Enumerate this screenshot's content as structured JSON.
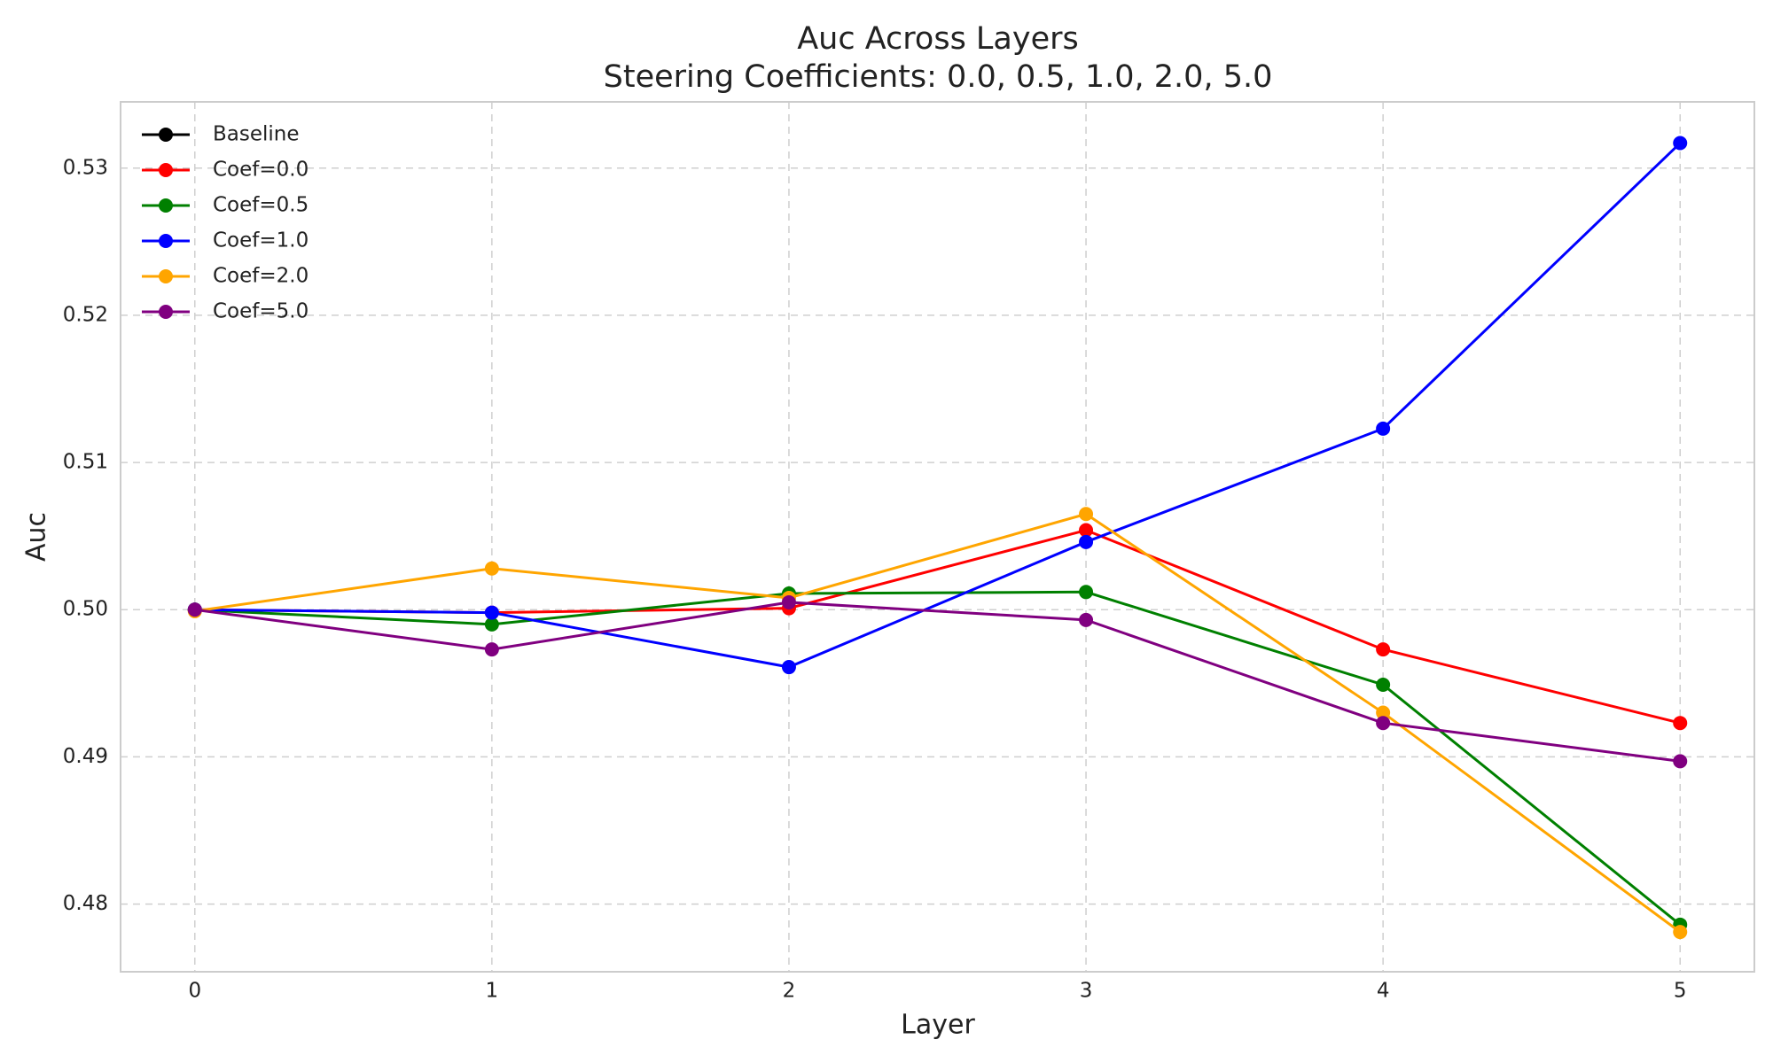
{
  "chart_data": {
    "type": "line",
    "title": "Auc Across Layers",
    "subtitle": "Steering Coefficients: 0.0, 0.5, 1.0, 2.0, 5.0",
    "x_label": "Layer",
    "y_label": "Auc",
    "x": [
      0,
      1,
      2,
      3,
      4,
      5
    ],
    "series": [
      {
        "name": "Baseline",
        "color": "#000000",
        "values": [
          0.5,
          null,
          null,
          null,
          null,
          null
        ]
      },
      {
        "name": "Coef=0.0",
        "color": "#ff0000",
        "values": [
          0.5,
          0.4998,
          0.5001,
          0.5054,
          0.4973,
          0.4923
        ]
      },
      {
        "name": "Coef=0.5",
        "color": "#008000",
        "values": [
          0.5,
          0.499,
          0.5011,
          0.5012,
          0.4949,
          0.4786
        ]
      },
      {
        "name": "Coef=1.0",
        "color": "#0000ff",
        "values": [
          0.5,
          0.4998,
          0.4961,
          0.5046,
          0.5123,
          0.5317
        ]
      },
      {
        "name": "Coef=2.0",
        "color": "#ffa500",
        "values": [
          0.4999,
          0.5028,
          0.5008,
          0.5065,
          0.493,
          0.4781
        ]
      },
      {
        "name": "Coef=5.0",
        "color": "#800080",
        "values": [
          0.5,
          0.4973,
          0.5005,
          0.4993,
          0.4923,
          0.4897
        ]
      }
    ],
    "xlim": [
      -0.25,
      5.25
    ],
    "xticks": [
      0,
      1,
      2,
      3,
      4,
      5
    ],
    "ylim": [
      0.4754,
      0.5345
    ],
    "yticks": [
      0.48,
      0.49,
      {
        "value": 0.5,
        "label": "0.50"
      },
      0.51,
      0.52,
      0.53
    ],
    "grid": true,
    "legend": "upper left"
  }
}
